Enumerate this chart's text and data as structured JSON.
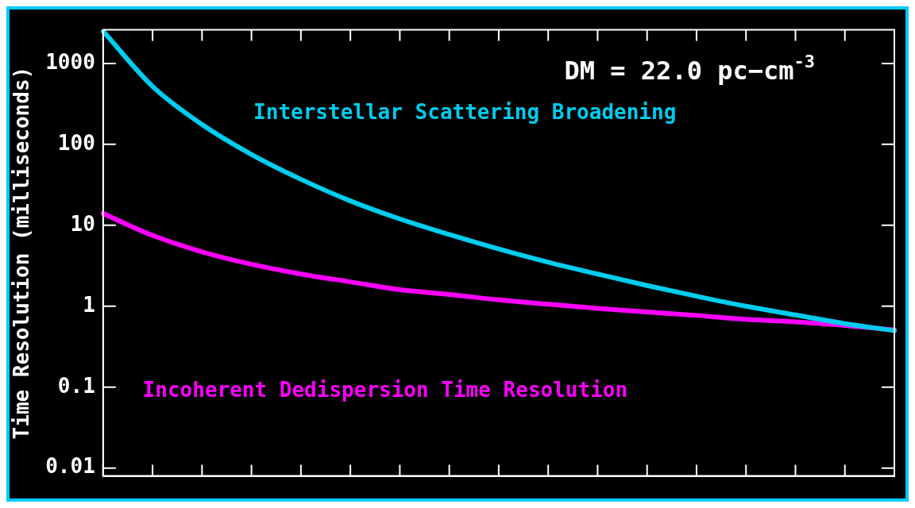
{
  "chart_data": {
    "type": "line",
    "ylabel": "Time Resolution (milliseconds)",
    "annotations": [
      "DM = 22.0 pc−cm$^{-3}$"
    ],
    "categories": [
      null,
      null,
      null,
      null,
      null,
      null,
      null,
      null,
      null,
      null,
      null,
      null,
      null,
      null,
      null,
      null,
      null
    ],
    "series": [
      {
        "name": "Interstellar Scattering Broadening",
        "color": "#00ccee",
        "values": [
          2500,
          520,
          176,
          75,
          37,
          20,
          12,
          7.7,
          5.1,
          3.5,
          2.5,
          1.8,
          1.33,
          1.0,
          0.78,
          0.61,
          0.5
        ]
      },
      {
        "name": "Incoherent Dedispersion Time Resolution",
        "color": "#ff00ff",
        "values": [
          14,
          7.5,
          4.7,
          3.3,
          2.5,
          2.0,
          1.6,
          1.4,
          1.2,
          1.06,
          0.94,
          0.85,
          0.77,
          0.69,
          0.64,
          0.58,
          0.51
        ]
      }
    ],
    "log": "y",
    "ylim": [
      0.008,
      2600
    ],
    "yticks": [
      0.01,
      0.1,
      1,
      10,
      100,
      1000
    ],
    "grid": false,
    "legend": false,
    "marker": "none",
    "line_style": "solid"
  }
}
